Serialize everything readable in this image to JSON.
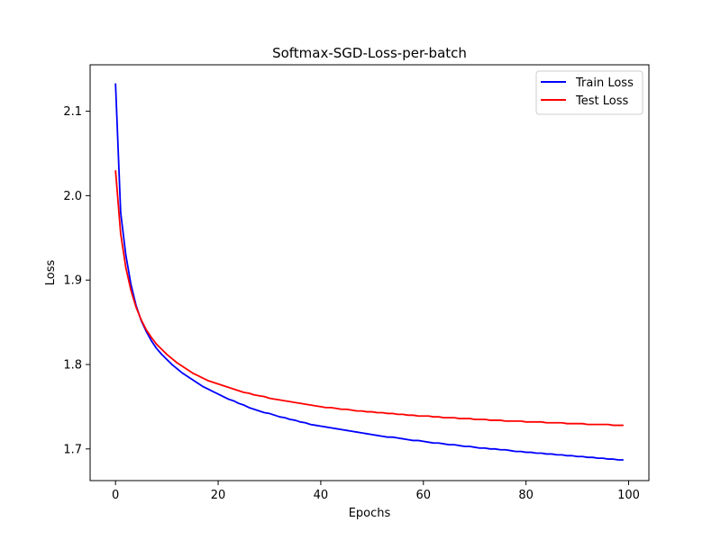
{
  "chart_data": {
    "type": "line",
    "title": "Softmax-SGD-Loss-per-batch",
    "xlabel": "Epochs",
    "ylabel": "Loss",
    "xlim": [
      -4.95,
      103.95
    ],
    "ylim": [
      1.6625,
      2.155
    ],
    "xticks": [
      0,
      20,
      40,
      60,
      80,
      100
    ],
    "yticks": [
      1.7,
      1.8,
      1.9,
      2.0,
      2.1
    ],
    "ytick_labels": [
      "1.7",
      "1.8",
      "1.9",
      "2.0",
      "2.1"
    ],
    "grid": false,
    "legend_position": "top-right",
    "x": [
      0,
      1,
      2,
      3,
      4,
      5,
      6,
      7,
      8,
      9,
      10,
      11,
      12,
      13,
      14,
      15,
      16,
      17,
      18,
      19,
      20,
      21,
      22,
      23,
      24,
      25,
      26,
      27,
      28,
      29,
      30,
      31,
      32,
      33,
      34,
      35,
      36,
      37,
      38,
      39,
      40,
      41,
      42,
      43,
      44,
      45,
      46,
      47,
      48,
      49,
      50,
      51,
      52,
      53,
      54,
      55,
      56,
      57,
      58,
      59,
      60,
      61,
      62,
      63,
      64,
      65,
      66,
      67,
      68,
      69,
      70,
      71,
      72,
      73,
      74,
      75,
      76,
      77,
      78,
      79,
      80,
      81,
      82,
      83,
      84,
      85,
      86,
      87,
      88,
      89,
      90,
      91,
      92,
      93,
      94,
      95,
      96,
      97,
      98,
      99
    ],
    "series": [
      {
        "name": "Train Loss",
        "color": "#0000ff",
        "values": [
          2.133,
          1.98,
          1.93,
          1.895,
          1.87,
          1.852,
          1.839,
          1.828,
          1.819,
          1.812,
          1.806,
          1.8,
          1.795,
          1.79,
          1.786,
          1.782,
          1.778,
          1.774,
          1.771,
          1.768,
          1.765,
          1.762,
          1.759,
          1.757,
          1.754,
          1.752,
          1.749,
          1.747,
          1.745,
          1.743,
          1.742,
          1.74,
          1.738,
          1.737,
          1.735,
          1.734,
          1.732,
          1.731,
          1.729,
          1.728,
          1.727,
          1.726,
          1.725,
          1.724,
          1.723,
          1.722,
          1.721,
          1.72,
          1.719,
          1.718,
          1.717,
          1.716,
          1.715,
          1.714,
          1.714,
          1.713,
          1.712,
          1.711,
          1.71,
          1.71,
          1.709,
          1.708,
          1.707,
          1.707,
          1.706,
          1.705,
          1.705,
          1.704,
          1.703,
          1.703,
          1.702,
          1.701,
          1.701,
          1.7,
          1.7,
          1.699,
          1.699,
          1.698,
          1.697,
          1.697,
          1.696,
          1.696,
          1.695,
          1.695,
          1.694,
          1.694,
          1.693,
          1.693,
          1.692,
          1.692,
          1.691,
          1.691,
          1.69,
          1.69,
          1.689,
          1.689,
          1.688,
          1.688,
          1.687,
          1.687
        ]
      },
      {
        "name": "Test Loss",
        "color": "#ff0000",
        "values": [
          2.03,
          1.955,
          1.915,
          1.888,
          1.868,
          1.853,
          1.841,
          1.832,
          1.824,
          1.818,
          1.812,
          1.807,
          1.802,
          1.798,
          1.794,
          1.79,
          1.787,
          1.784,
          1.781,
          1.779,
          1.777,
          1.775,
          1.773,
          1.771,
          1.769,
          1.767,
          1.766,
          1.764,
          1.763,
          1.762,
          1.76,
          1.759,
          1.758,
          1.757,
          1.756,
          1.755,
          1.754,
          1.753,
          1.752,
          1.751,
          1.75,
          1.749,
          1.749,
          1.748,
          1.747,
          1.747,
          1.746,
          1.745,
          1.745,
          1.744,
          1.744,
          1.743,
          1.743,
          1.742,
          1.742,
          1.741,
          1.741,
          1.74,
          1.74,
          1.739,
          1.739,
          1.739,
          1.738,
          1.738,
          1.737,
          1.737,
          1.737,
          1.736,
          1.736,
          1.736,
          1.735,
          1.735,
          1.735,
          1.734,
          1.734,
          1.734,
          1.733,
          1.733,
          1.733,
          1.733,
          1.732,
          1.732,
          1.732,
          1.732,
          1.731,
          1.731,
          1.731,
          1.731,
          1.73,
          1.73,
          1.73,
          1.73,
          1.729,
          1.729,
          1.729,
          1.729,
          1.729,
          1.728,
          1.728,
          1.728
        ]
      }
    ]
  }
}
